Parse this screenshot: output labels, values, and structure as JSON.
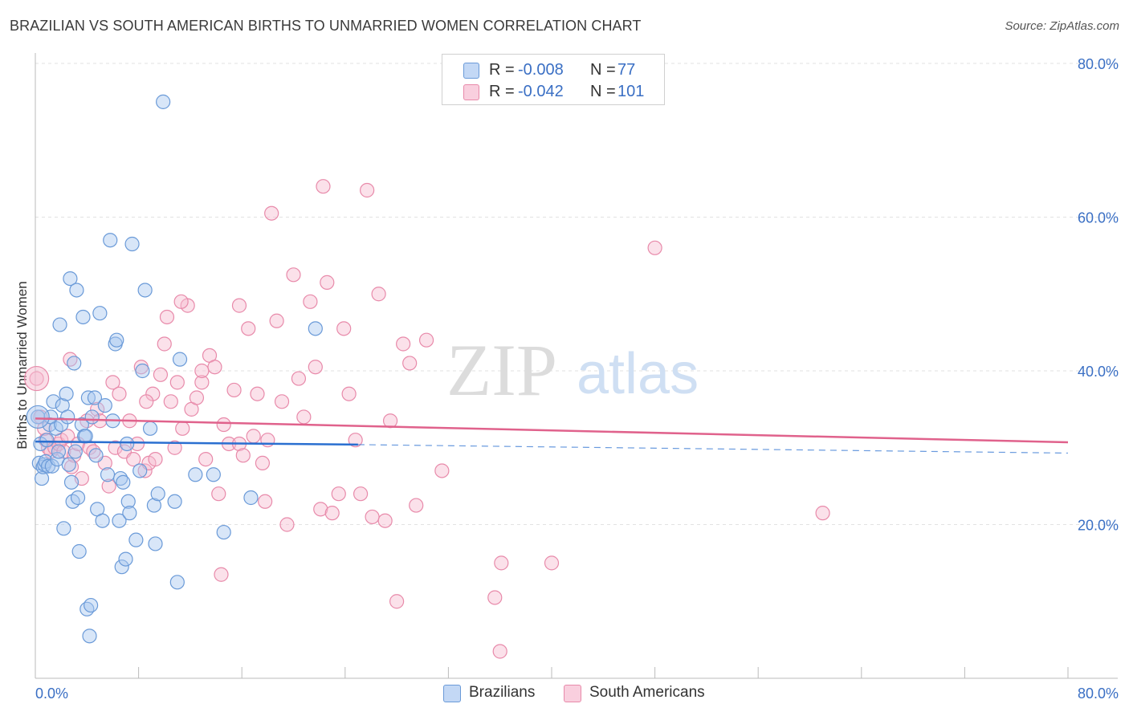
{
  "title": "BRAZILIAN VS SOUTH AMERICAN BIRTHS TO UNMARRIED WOMEN CORRELATION CHART",
  "source": "Source: ZipAtlas.com",
  "watermark": {
    "zip": "ZIP",
    "atlas": "atlas"
  },
  "legend_top": {
    "rows": [
      {
        "r_label": "R =",
        "r_value": "-0.008",
        "n_label": "N =",
        "n_value": "77"
      },
      {
        "r_label": "R =",
        "r_value": "-0.042",
        "n_label": "N =",
        "n_value": "101"
      }
    ]
  },
  "legend_bottom": {
    "items": [
      "Brazilians",
      "South Americans"
    ]
  },
  "colors": {
    "blue_fill": "#a9c8f0",
    "blue_stroke": "#6a9ad8",
    "blue_line": "#2a6fd0",
    "pink_fill": "#f6bcd0",
    "pink_stroke": "#e88aaa",
    "pink_line": "#e0628c",
    "axis_text": "#3a6fc4",
    "grid": "#e2e2e2"
  },
  "chart_data": {
    "type": "scatter",
    "title": "BRAZILIAN VS SOUTH AMERICAN BIRTHS TO UNMARRIED WOMEN CORRELATION CHART",
    "xlabel": "",
    "ylabel": "Births to Unmarried Women",
    "xlim": [
      0,
      80
    ],
    "ylim": [
      0,
      80
    ],
    "x_tick_labels": [
      "0.0%",
      "80.0%"
    ],
    "y_tick_values": [
      20,
      40,
      60,
      80
    ],
    "y_tick_labels": [
      "20.0%",
      "40.0%",
      "60.0%",
      "80.0%"
    ],
    "grid": true,
    "series": [
      {
        "name": "Brazilians",
        "r": -0.008,
        "n": 77,
        "trend": {
          "x": [
            0,
            25,
            80
          ],
          "y": [
            30.8,
            30.4,
            29.3
          ],
          "solid_until": 25
        },
        "points": [
          [
            0.3,
            28.0
          ],
          [
            0.4,
            30.5
          ],
          [
            0.5,
            26.0
          ],
          [
            0.6,
            27.5
          ],
          [
            0.7,
            27.8
          ],
          [
            0.8,
            28.2
          ],
          [
            0.9,
            31.0
          ],
          [
            1.0,
            27.6
          ],
          [
            1.1,
            33.0
          ],
          [
            1.2,
            34.0
          ],
          [
            1.3,
            27.6
          ],
          [
            1.4,
            36.0
          ],
          [
            1.6,
            32.5
          ],
          [
            1.7,
            28.5
          ],
          [
            1.8,
            29.5
          ],
          [
            1.9,
            46.0
          ],
          [
            2.0,
            33.0
          ],
          [
            2.1,
            35.5
          ],
          [
            2.2,
            19.5
          ],
          [
            2.4,
            37.0
          ],
          [
            2.5,
            34.0
          ],
          [
            2.6,
            27.8
          ],
          [
            2.7,
            52.0
          ],
          [
            2.8,
            25.5
          ],
          [
            2.9,
            23.0
          ],
          [
            3.0,
            41.0
          ],
          [
            3.1,
            29.5
          ],
          [
            3.2,
            50.5
          ],
          [
            3.3,
            23.5
          ],
          [
            3.4,
            16.5
          ],
          [
            3.6,
            33.0
          ],
          [
            3.7,
            47.0
          ],
          [
            3.8,
            31.5
          ],
          [
            3.9,
            31.5
          ],
          [
            4.0,
            9.0
          ],
          [
            4.1,
            36.5
          ],
          [
            4.2,
            5.5
          ],
          [
            4.3,
            9.5
          ],
          [
            4.4,
            34.0
          ],
          [
            4.6,
            36.5
          ],
          [
            4.7,
            29.0
          ],
          [
            4.8,
            22.0
          ],
          [
            5.0,
            47.5
          ],
          [
            5.2,
            20.5
          ],
          [
            5.4,
            35.5
          ],
          [
            5.6,
            26.5
          ],
          [
            5.8,
            57.0
          ],
          [
            6.0,
            33.5
          ],
          [
            6.2,
            43.5
          ],
          [
            6.3,
            44.0
          ],
          [
            6.5,
            20.5
          ],
          [
            6.6,
            26.0
          ],
          [
            6.7,
            14.5
          ],
          [
            6.8,
            25.5
          ],
          [
            7.0,
            15.5
          ],
          [
            7.1,
            30.5
          ],
          [
            7.2,
            23.0
          ],
          [
            7.3,
            21.5
          ],
          [
            7.5,
            56.5
          ],
          [
            7.8,
            18.0
          ],
          [
            8.1,
            27.0
          ],
          [
            8.3,
            40.0
          ],
          [
            8.5,
            50.5
          ],
          [
            8.9,
            32.5
          ],
          [
            9.2,
            22.5
          ],
          [
            9.3,
            17.5
          ],
          [
            9.5,
            24.0
          ],
          [
            9.9,
            75.0
          ],
          [
            10.8,
            23.0
          ],
          [
            11.0,
            12.5
          ],
          [
            11.2,
            41.5
          ],
          [
            12.4,
            26.5
          ],
          [
            13.8,
            26.5
          ],
          [
            14.6,
            19.0
          ],
          [
            16.7,
            23.5
          ],
          [
            21.7,
            45.5
          ],
          [
            0.2,
            34.0
          ]
        ]
      },
      {
        "name": "South Americans",
        "r": -0.042,
        "n": 101,
        "trend": {
          "x": [
            0,
            80
          ],
          "y": [
            33.8,
            30.7
          ]
        },
        "points": [
          [
            0.1,
            39.0
          ],
          [
            0.4,
            34.0
          ],
          [
            0.8,
            31.0
          ],
          [
            1.0,
            30.0
          ],
          [
            1.2,
            29.5
          ],
          [
            1.5,
            30.0
          ],
          [
            1.8,
            30.5
          ],
          [
            2.0,
            31.0
          ],
          [
            2.2,
            29.5
          ],
          [
            2.5,
            31.5
          ],
          [
            2.8,
            27.5
          ],
          [
            3.0,
            29.0
          ],
          [
            3.3,
            30.5
          ],
          [
            3.6,
            26.0
          ],
          [
            4.0,
            33.5
          ],
          [
            4.2,
            30.0
          ],
          [
            4.5,
            29.5
          ],
          [
            4.8,
            35.0
          ],
          [
            5.0,
            33.5
          ],
          [
            5.4,
            28.0
          ],
          [
            5.7,
            25.0
          ],
          [
            6.0,
            38.5
          ],
          [
            6.2,
            30.0
          ],
          [
            6.5,
            37.0
          ],
          [
            6.9,
            29.5
          ],
          [
            7.3,
            33.5
          ],
          [
            7.6,
            28.5
          ],
          [
            7.9,
            30.5
          ],
          [
            8.2,
            40.5
          ],
          [
            8.5,
            27.0
          ],
          [
            8.8,
            28.0
          ],
          [
            9.1,
            37.0
          ],
          [
            9.3,
            28.5
          ],
          [
            9.7,
            39.5
          ],
          [
            10.0,
            43.5
          ],
          [
            10.2,
            47.0
          ],
          [
            10.5,
            36.0
          ],
          [
            10.8,
            30.0
          ],
          [
            11.0,
            38.5
          ],
          [
            11.4,
            32.5
          ],
          [
            11.8,
            48.5
          ],
          [
            12.1,
            35.0
          ],
          [
            12.5,
            36.5
          ],
          [
            12.9,
            38.5
          ],
          [
            13.2,
            28.5
          ],
          [
            13.5,
            42.0
          ],
          [
            13.9,
            40.5
          ],
          [
            14.2,
            24.0
          ],
          [
            14.6,
            33.0
          ],
          [
            15.0,
            30.5
          ],
          [
            15.4,
            37.5
          ],
          [
            15.8,
            30.5
          ],
          [
            16.1,
            29.0
          ],
          [
            16.5,
            45.5
          ],
          [
            16.9,
            31.5
          ],
          [
            17.2,
            37.0
          ],
          [
            17.6,
            28.0
          ],
          [
            18.0,
            31.0
          ],
          [
            18.3,
            60.5
          ],
          [
            18.7,
            46.5
          ],
          [
            19.1,
            36.0
          ],
          [
            19.5,
            20.0
          ],
          [
            20.0,
            52.5
          ],
          [
            20.4,
            39.0
          ],
          [
            20.8,
            34.0
          ],
          [
            21.3,
            49.0
          ],
          [
            21.7,
            40.5
          ],
          [
            22.1,
            22.0
          ],
          [
            22.6,
            51.5
          ],
          [
            23.0,
            21.5
          ],
          [
            23.5,
            24.0
          ],
          [
            23.9,
            45.5
          ],
          [
            24.3,
            37.0
          ],
          [
            24.8,
            31.0
          ],
          [
            25.2,
            24.0
          ],
          [
            25.7,
            63.5
          ],
          [
            26.1,
            21.0
          ],
          [
            26.6,
            50.0
          ],
          [
            27.1,
            20.5
          ],
          [
            27.5,
            33.5
          ],
          [
            28.0,
            10.0
          ],
          [
            28.5,
            43.5
          ],
          [
            29.0,
            41.0
          ],
          [
            29.5,
            22.5
          ],
          [
            30.3,
            44.0
          ],
          [
            31.5,
            27.0
          ],
          [
            35.6,
            10.5
          ],
          [
            36.0,
            3.5
          ],
          [
            36.1,
            15.0
          ],
          [
            40.0,
            15.0
          ],
          [
            48.0,
            56.0
          ],
          [
            61.0,
            21.5
          ],
          [
            12.9,
            40.0
          ],
          [
            11.3,
            49.0
          ],
          [
            14.4,
            13.5
          ],
          [
            22.3,
            64.0
          ],
          [
            15.8,
            48.5
          ],
          [
            8.6,
            36.0
          ],
          [
            2.7,
            41.5
          ],
          [
            17.8,
            23.0
          ],
          [
            0.7,
            32.5
          ]
        ]
      }
    ]
  }
}
